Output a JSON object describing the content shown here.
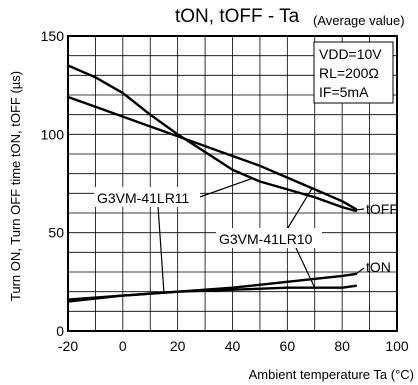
{
  "chart_data": {
    "type": "line",
    "title": "tON, tOFF - Ta",
    "subtitle": "(Average value)",
    "xlabel": "Ambient temperature Ta (°C)",
    "ylabel": "Turn ON, Turn OFF time tON, tOFF (µs)",
    "xlim": [
      -20,
      100
    ],
    "ylim": [
      0,
      150
    ],
    "xticks": [
      -20,
      0,
      20,
      40,
      60,
      80,
      100
    ],
    "yticks": [
      0,
      50,
      100,
      150
    ],
    "grid": true,
    "conditions": [
      "VDD=10V",
      "RL=200Ω",
      "IF=5mA"
    ],
    "conditions_position": "top-right",
    "series": [
      {
        "name": "tOFF G3VM-41LR11",
        "x": [
          -20,
          -10,
          0,
          10,
          20,
          30,
          40,
          50,
          60,
          70,
          80,
          85
        ],
        "y": [
          135,
          129,
          121,
          110,
          100,
          91,
          82,
          76,
          72,
          68,
          63,
          61
        ]
      },
      {
        "name": "tOFF G3VM-41LR10",
        "x": [
          -20,
          -10,
          0,
          10,
          20,
          30,
          40,
          50,
          60,
          70,
          80,
          85
        ],
        "y": [
          119,
          114,
          109,
          104,
          99,
          94,
          89,
          84,
          78,
          72,
          66,
          62
        ]
      },
      {
        "name": "tON G3VM-41LR11",
        "x": [
          -20,
          0,
          20,
          40,
          60,
          80,
          85
        ],
        "y": [
          15,
          18,
          20,
          22,
          25,
          28,
          29
        ]
      },
      {
        "name": "tON G3VM-41LR10",
        "x": [
          -20,
          0,
          20,
          40,
          60,
          80,
          85
        ],
        "y": [
          16,
          18,
          20,
          21,
          22,
          22,
          23
        ]
      }
    ],
    "curve_labels": {
      "toff": "tOFF",
      "ton": "tON",
      "device_a": "G3VM-41LR11",
      "device_b": "G3VM-41LR10"
    }
  }
}
